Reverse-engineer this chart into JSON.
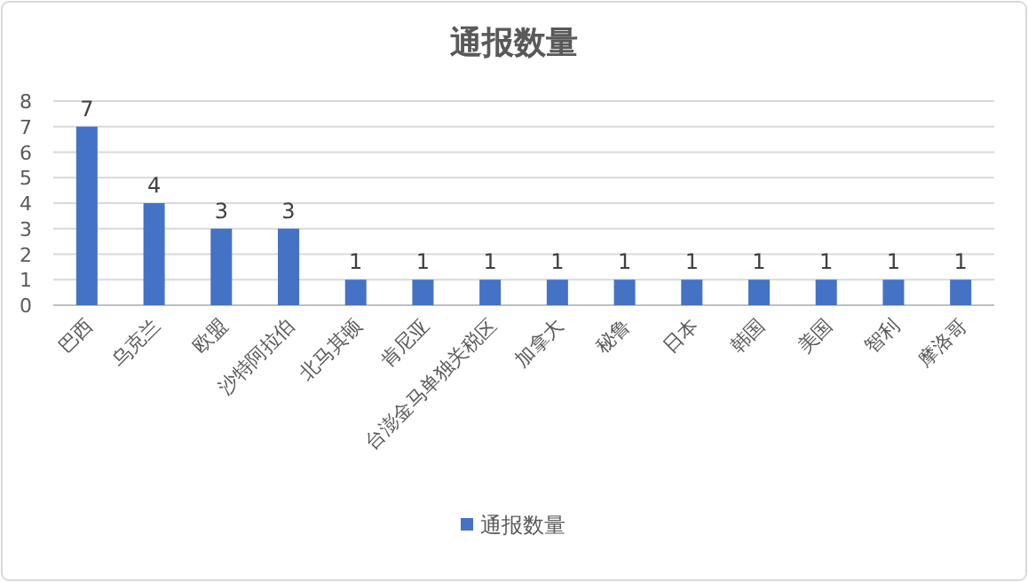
{
  "chart_data": {
    "type": "bar",
    "title": "通报数量",
    "categories": [
      "巴西",
      "乌克兰",
      "欧盟",
      "沙特阿拉伯",
      "北马其顿",
      "肯尼亚",
      "台澎金马单独关税区",
      "加拿大",
      "秘鲁",
      "日本",
      "韩国",
      "美国",
      "智利",
      "摩洛哥"
    ],
    "series": [
      {
        "name": "通报数量",
        "color": "#4472c4",
        "values": [
          7,
          4,
          3,
          3,
          1,
          1,
          1,
          1,
          1,
          1,
          1,
          1,
          1,
          1
        ]
      }
    ],
    "ylim": [
      0,
      8
    ],
    "yticks": [
      0,
      1,
      2,
      3,
      4,
      5,
      6,
      7,
      8
    ],
    "grid": "y",
    "legend": "bottom",
    "data_labels": true
  }
}
